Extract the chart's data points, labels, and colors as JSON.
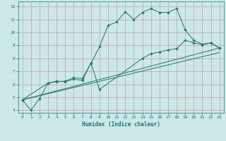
{
  "xlabel": "Humidex (Indice chaleur)",
  "bg_color": "#cce8e8",
  "grid_color": "#c8a0a0",
  "line_color": "#1a7a6a",
  "xlim": [
    -0.5,
    23.5
  ],
  "ylim": [
    3.8,
    12.4
  ],
  "xticks": [
    0,
    1,
    2,
    3,
    4,
    5,
    6,
    7,
    8,
    9,
    10,
    11,
    12,
    13,
    14,
    15,
    16,
    17,
    18,
    19,
    20,
    21,
    22,
    23
  ],
  "yticks": [
    4,
    5,
    6,
    7,
    8,
    9,
    10,
    11,
    12
  ],
  "line1_x": [
    0,
    1,
    2,
    3,
    4,
    5,
    6,
    7,
    8,
    9,
    10,
    11,
    12,
    13,
    14,
    15,
    16,
    17,
    18,
    19,
    20,
    21,
    22,
    23
  ],
  "line1_y": [
    4.8,
    4.0,
    4.9,
    6.1,
    6.2,
    6.25,
    6.5,
    6.45,
    7.6,
    8.9,
    10.55,
    10.8,
    11.6,
    11.0,
    11.55,
    11.85,
    11.55,
    11.55,
    11.85,
    10.2,
    9.4,
    9.1,
    9.2,
    8.8
  ],
  "line2_x": [
    0,
    3,
    4,
    5,
    6,
    7,
    8,
    9,
    14,
    15,
    16,
    17,
    18,
    19,
    20,
    21,
    22,
    23
  ],
  "line2_y": [
    4.8,
    6.1,
    6.25,
    6.2,
    6.4,
    6.3,
    7.65,
    5.6,
    8.0,
    8.35,
    8.5,
    8.65,
    8.75,
    9.4,
    9.2,
    9.05,
    9.2,
    8.8
  ],
  "line3_x": [
    0,
    23
  ],
  "line3_y": [
    4.8,
    8.8
  ],
  "line4_x": [
    0,
    23
  ],
  "line4_y": [
    4.8,
    8.45
  ]
}
